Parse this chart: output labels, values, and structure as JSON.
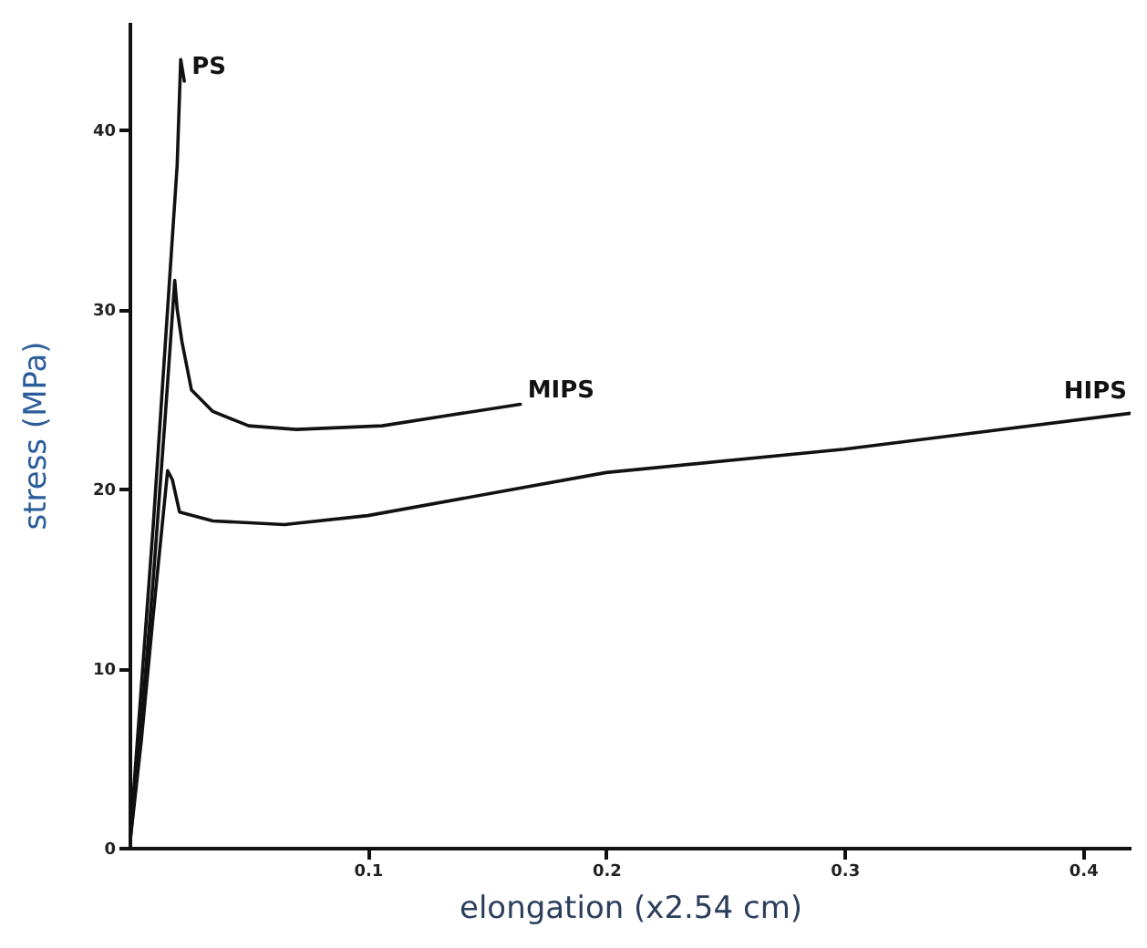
{
  "chart_data": {
    "type": "line",
    "xlabel": "elongation (x2.54 cm)",
    "ylabel": "stress (MPa)",
    "xlim": [
      0,
      0.42
    ],
    "ylim": [
      0,
      46
    ],
    "xticks": [
      0.1,
      0.2,
      0.3,
      0.4
    ],
    "yticks": [
      0,
      10,
      20,
      30,
      40
    ],
    "grid": false,
    "marker": "none",
    "line_style": "solid",
    "series": [
      {
        "name": "PS",
        "color": "#111111",
        "x": [
          0,
          0.005,
          0.01,
          0.015,
          0.02,
          0.0215,
          0.023
        ],
        "values": [
          0,
          9,
          18,
          28,
          38,
          43.9,
          42.7
        ]
      },
      {
        "name": "MIPS",
        "color": "#111111",
        "x": [
          0,
          0.005,
          0.01,
          0.015,
          0.019,
          0.02,
          0.022,
          0.026,
          0.035,
          0.05,
          0.07,
          0.106,
          0.13,
          0.164
        ],
        "values": [
          0,
          7,
          15,
          24,
          31.6,
          30,
          28.2,
          25.5,
          24.3,
          23.5,
          23.3,
          23.5,
          24,
          24.7
        ]
      },
      {
        "name": "HIPS",
        "color": "#111111",
        "x": [
          0,
          0.005,
          0.01,
          0.016,
          0.018,
          0.021,
          0.035,
          0.065,
          0.1,
          0.2,
          0.3,
          0.42
        ],
        "values": [
          0,
          6,
          13,
          21,
          20.5,
          18.7,
          18.2,
          18,
          18.5,
          20.9,
          22.2,
          24.2
        ]
      }
    ]
  }
}
